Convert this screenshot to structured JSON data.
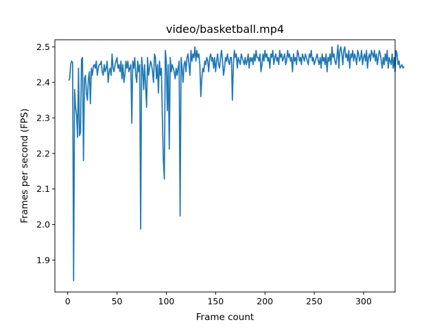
{
  "chart_data": {
    "type": "line",
    "title": "video/basketball.mp4",
    "xlabel": "Frame count",
    "ylabel": "Frames per second (FPS)",
    "xlim": [
      -13,
      332
    ],
    "ylim": [
      1.81,
      2.52
    ],
    "xticks": [
      0,
      50,
      100,
      150,
      200,
      250,
      300
    ],
    "yticks": [
      1.9,
      2.0,
      2.1,
      2.2,
      2.3,
      2.4,
      2.5
    ],
    "yticks_labels": [
      "1.9",
      "2.0",
      "2.1",
      "2.2",
      "2.3",
      "2.4",
      "2.5"
    ],
    "grid": false,
    "line_color": "#1f77b4",
    "series": [
      {
        "x_start": 1,
        "values": [
          2.405,
          2.41,
          2.45,
          2.46,
          2.455,
          1.842,
          2.38,
          2.33,
          2.31,
          2.245,
          2.44,
          2.25,
          2.26,
          2.465,
          2.47,
          2.18,
          2.41,
          2.42,
          2.37,
          2.35,
          2.41,
          2.43,
          2.34,
          2.44,
          2.42,
          2.445,
          2.45,
          2.44,
          2.46,
          2.42,
          2.44,
          2.45,
          2.45,
          2.46,
          2.43,
          2.42,
          2.45,
          2.43,
          2.44,
          2.46,
          2.4,
          2.43,
          2.44,
          2.42,
          2.48,
          2.44,
          2.43,
          2.45,
          2.46,
          2.47,
          2.44,
          2.45,
          2.43,
          2.46,
          2.41,
          2.45,
          2.4,
          2.42,
          2.46,
          2.44,
          2.46,
          2.43,
          2.44,
          2.45,
          2.285,
          2.46,
          2.44,
          2.47,
          2.42,
          2.4,
          2.46,
          2.43,
          2.45,
          1.987,
          2.47,
          2.44,
          2.38,
          2.45,
          2.39,
          2.33,
          2.47,
          2.42,
          2.44,
          2.46,
          2.45,
          2.43,
          2.4,
          2.48,
          2.47,
          2.41,
          2.45,
          2.37,
          2.46,
          2.42,
          2.44,
          2.3,
          2.18,
          2.128,
          2.49,
          2.46,
          2.32,
          2.45,
          2.212,
          2.47,
          2.43,
          2.45,
          2.44,
          2.43,
          2.41,
          2.44,
          2.42,
          2.44,
          2.46,
          2.024,
          2.47,
          2.44,
          2.4,
          2.45,
          2.46,
          2.43,
          2.47,
          2.48,
          2.45,
          2.42,
          2.49,
          2.46,
          2.48,
          2.47,
          2.5,
          2.46,
          2.49,
          2.47,
          2.48,
          2.45,
          2.36,
          2.41,
          2.44,
          2.43,
          2.46,
          2.45,
          2.47,
          2.46,
          2.43,
          2.47,
          2.48,
          2.46,
          2.47,
          2.44,
          2.47,
          2.43,
          2.46,
          2.48,
          2.45,
          2.44,
          2.47,
          2.49,
          2.46,
          2.42,
          2.44,
          2.47,
          2.46,
          2.48,
          2.46,
          2.45,
          2.47,
          2.47,
          2.35,
          2.45,
          2.49,
          2.47,
          2.48,
          2.44,
          2.47,
          2.46,
          2.45,
          2.48,
          2.47,
          2.46,
          2.45,
          2.47,
          2.45,
          2.46,
          2.48,
          2.44,
          2.47,
          2.46,
          2.47,
          2.45,
          2.48,
          2.46,
          2.49,
          2.47,
          2.47,
          2.46,
          2.48,
          2.43,
          2.45,
          2.48,
          2.46,
          2.49,
          2.47,
          2.48,
          2.46,
          2.47,
          2.44,
          2.48,
          2.47,
          2.49,
          2.45,
          2.47,
          2.48,
          2.46,
          2.47,
          2.45,
          2.49,
          2.47,
          2.48,
          2.46,
          2.47,
          2.48,
          2.45,
          2.46,
          2.49,
          2.47,
          2.48,
          2.46,
          2.47,
          2.43,
          2.48,
          2.46,
          2.47,
          2.45,
          2.49,
          2.48,
          2.46,
          2.47,
          2.45,
          2.48,
          2.47,
          2.46,
          2.48,
          2.47,
          2.46,
          2.45,
          2.48,
          2.47,
          2.49,
          2.46,
          2.47,
          2.45,
          2.46,
          2.47,
          2.48,
          2.46,
          2.45,
          2.47,
          2.44,
          2.48,
          2.46,
          2.47,
          2.45,
          2.48,
          2.43,
          2.47,
          2.46,
          2.48,
          2.45,
          2.5,
          2.47,
          2.48,
          2.46,
          2.45,
          2.47,
          2.505,
          2.44,
          2.49,
          2.5,
          2.48,
          2.45,
          2.49,
          2.5,
          2.47,
          2.48,
          2.46,
          2.49,
          2.44,
          2.48,
          2.47,
          2.49,
          2.46,
          2.48,
          2.47,
          2.45,
          2.49,
          2.48,
          2.46,
          2.47,
          2.49,
          2.45,
          2.47,
          2.48,
          2.46,
          2.49,
          2.44,
          2.47,
          2.48,
          2.46,
          2.49,
          2.48,
          2.47,
          2.49,
          2.46,
          2.48,
          2.45,
          2.47,
          2.49,
          2.48,
          2.46,
          2.44,
          2.47,
          2.45,
          2.48,
          2.46,
          2.49,
          2.44,
          2.47,
          2.46,
          2.45,
          2.48,
          2.44,
          2.47,
          2.43,
          2.49,
          2.48,
          2.45,
          2.46,
          2.44,
          2.445,
          2.45,
          2.44,
          2.445
        ]
      }
    ]
  }
}
